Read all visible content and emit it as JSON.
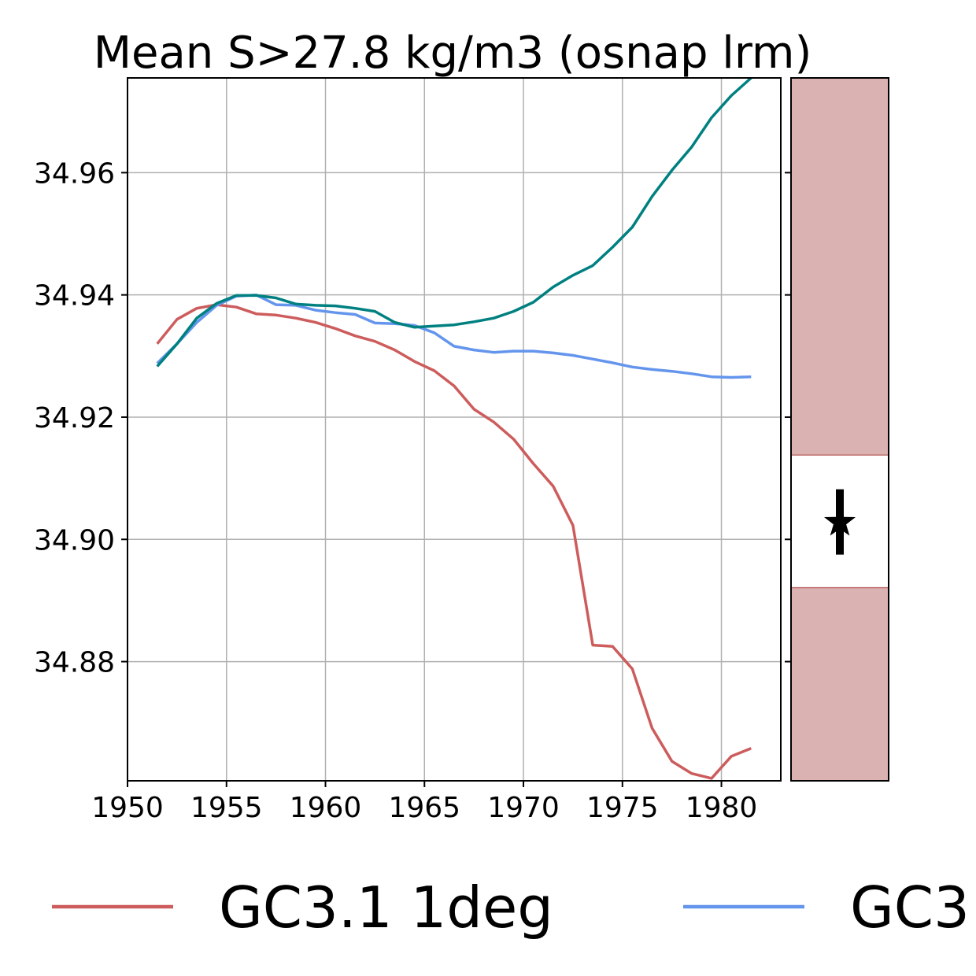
{
  "chart_data": {
    "type": "line",
    "title": "Mean S>27.8 kg/m3 (osnap lrm)",
    "xlabel": "",
    "ylabel": "",
    "xlim": [
      1950,
      1983
    ],
    "ylim": [
      34.8605,
      34.9755
    ],
    "xticks": [
      "1950",
      "1955",
      "1960",
      "1965",
      "1970",
      "1975",
      "1980"
    ],
    "xtick_values": [
      1950,
      1955,
      1960,
      1965,
      1970,
      1975,
      1980
    ],
    "yticks": [
      "34.88",
      "34.90",
      "34.92",
      "34.94",
      "34.96"
    ],
    "ytick_values": [
      34.88,
      34.9,
      34.92,
      34.94,
      34.96
    ],
    "grid": true,
    "legend_placement": "bottom",
    "series": [
      {
        "name": "GC3.1 1deg",
        "color": "#cd5c5c",
        "x": [
          1951.5,
          1952.5,
          1953.5,
          1954.5,
          1955.5,
          1956.5,
          1957.5,
          1958.5,
          1959.5,
          1960.5,
          1961.5,
          1962.5,
          1963.5,
          1964.5,
          1965.5,
          1966.5,
          1967.5,
          1968.5,
          1969.5,
          1970.5,
          1971.5,
          1972.5,
          1973.5,
          1974.5,
          1975.5,
          1976.5,
          1977.5,
          1978.5,
          1979.5,
          1980.5,
          1981.5
        ],
        "y": [
          34.932,
          34.936,
          34.9378,
          34.9384,
          34.938,
          34.9369,
          34.9367,
          34.9362,
          34.9355,
          34.9345,
          34.9333,
          34.9324,
          34.931,
          34.9291,
          34.9276,
          34.9251,
          34.9213,
          34.9192,
          34.9164,
          34.9124,
          34.9087,
          34.9023,
          34.8827,
          34.8825,
          34.8788,
          34.8691,
          34.8637,
          34.8617,
          34.8609,
          34.8645,
          34.8658
        ]
      },
      {
        "name": "GC3",
        "color": "#6495ed",
        "x": [
          1951.5,
          1952.5,
          1953.5,
          1954.5,
          1955.5,
          1956.5,
          1957.5,
          1958.5,
          1959.5,
          1960.5,
          1961.5,
          1962.5,
          1963.5,
          1964.5,
          1965.5,
          1966.5,
          1967.5,
          1968.5,
          1969.5,
          1970.5,
          1971.5,
          1972.5,
          1973.5,
          1974.5,
          1975.5,
          1976.5,
          1977.5,
          1978.5,
          1979.5,
          1980.5,
          1981.5
        ],
        "y": [
          34.9288,
          34.932,
          34.9355,
          34.9383,
          34.9398,
          34.94,
          34.9384,
          34.9383,
          34.9375,
          34.9371,
          34.9368,
          34.9354,
          34.9353,
          34.935,
          34.9338,
          34.9316,
          34.931,
          34.9306,
          34.9308,
          34.9308,
          34.9305,
          34.9301,
          34.9295,
          34.9289,
          34.9282,
          34.9278,
          34.9275,
          34.9271,
          34.9266,
          34.9265,
          34.9266
        ]
      },
      {
        "color": "#008080",
        "x": [
          1951.5,
          1952.5,
          1953.5,
          1954.5,
          1955.5,
          1956.5,
          1957.5,
          1958.5,
          1959.5,
          1960.5,
          1961.5,
          1962.5,
          1963.5,
          1964.5,
          1965.5,
          1966.5,
          1967.5,
          1968.5,
          1969.5,
          1970.5,
          1971.5,
          1972.5,
          1973.5,
          1974.5,
          1975.5,
          1976.5,
          1977.5,
          1978.5,
          1979.5,
          1980.5,
          1981.5
        ],
        "y": [
          34.9283,
          34.932,
          34.9362,
          34.9386,
          34.9399,
          34.9399,
          34.9395,
          34.9385,
          34.9383,
          34.9382,
          34.9378,
          34.9373,
          34.9355,
          34.9347,
          34.9349,
          34.9351,
          34.9356,
          34.9362,
          34.9373,
          34.9388,
          34.9413,
          34.9432,
          34.9448,
          34.9478,
          34.9511,
          34.9561,
          34.9604,
          34.9642,
          34.969,
          34.9726,
          34.9755
        ]
      }
    ],
    "side_panel": {
      "shaded_color": "#dbb2b2",
      "band_ylim": [
        34.8921,
        34.9138
      ],
      "marker": "star",
      "point_y": 34.9028,
      "error_range": [
        34.8975,
        34.9082
      ]
    },
    "legend": {
      "entries": [
        "GC3.1 1deg",
        "GC3"
      ]
    }
  }
}
